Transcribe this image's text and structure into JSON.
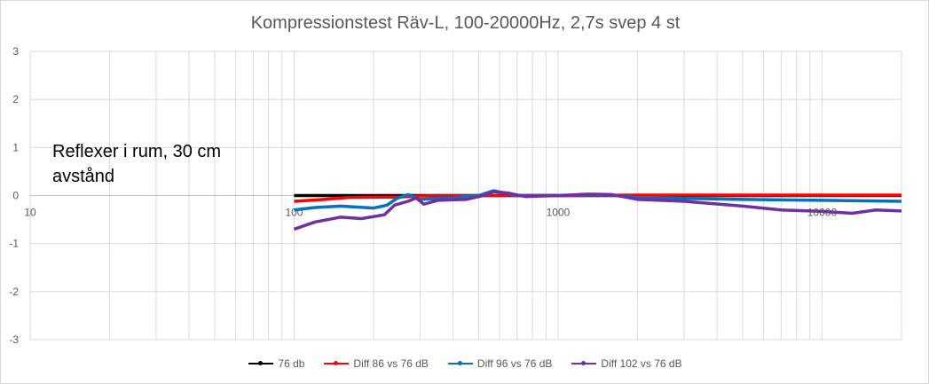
{
  "chart_data": {
    "type": "line",
    "title": "Kompressionstest Räv-L, 100-20000Hz,  2,7s svep 4 st",
    "annotation": [
      "Reflexer i rum, 30 cm",
      "avstånd"
    ],
    "xscale": "log",
    "xlim": [
      10,
      20000
    ],
    "ylim": [
      -3,
      3
    ],
    "xticks": [
      "10",
      "100",
      "1000",
      "10000"
    ],
    "yticks": [
      "3",
      "2",
      "1",
      "0",
      "-1",
      "-2",
      "-3"
    ],
    "grid": true,
    "legend": "bottom",
    "series": [
      {
        "name": "76 db",
        "color": "#000000",
        "points": [
          [
            100,
            0
          ],
          [
            20000,
            0
          ]
        ]
      },
      {
        "name": "Diff 86 vs 76 dB",
        "color": "#ff0000",
        "points": [
          [
            100,
            -0.12
          ],
          [
            130,
            -0.08
          ],
          [
            160,
            -0.04
          ],
          [
            250,
            -0.03
          ],
          [
            300,
            -0.01
          ],
          [
            500,
            0
          ],
          [
            1000,
            0
          ],
          [
            2000,
            0.01
          ],
          [
            20000,
            0.01
          ]
        ]
      },
      {
        "name": "Diff 96 vs 76 dB",
        "color": "#0070c0",
        "points": [
          [
            100,
            -0.3
          ],
          [
            120,
            -0.25
          ],
          [
            150,
            -0.22
          ],
          [
            200,
            -0.26
          ],
          [
            225,
            -0.2
          ],
          [
            245,
            -0.06
          ],
          [
            270,
            0.02
          ],
          [
            300,
            -0.08
          ],
          [
            400,
            -0.05
          ],
          [
            500,
            0
          ],
          [
            570,
            0.1
          ],
          [
            700,
            0
          ],
          [
            1000,
            0
          ],
          [
            1500,
            0.02
          ],
          [
            2000,
            -0.04
          ],
          [
            3000,
            -0.06
          ],
          [
            5000,
            -0.08
          ],
          [
            10000,
            -0.1
          ],
          [
            20000,
            -0.12
          ]
        ]
      },
      {
        "name": "Diff 102 vs 76 dB",
        "color": "#7030a0",
        "points": [
          [
            100,
            -0.7
          ],
          [
            120,
            -0.55
          ],
          [
            150,
            -0.45
          ],
          [
            180,
            -0.48
          ],
          [
            220,
            -0.4
          ],
          [
            240,
            -0.2
          ],
          [
            270,
            -0.12
          ],
          [
            290,
            -0.05
          ],
          [
            310,
            -0.18
          ],
          [
            350,
            -0.1
          ],
          [
            450,
            -0.08
          ],
          [
            520,
            0
          ],
          [
            570,
            0.08
          ],
          [
            650,
            0.05
          ],
          [
            750,
            -0.02
          ],
          [
            1000,
            0
          ],
          [
            1300,
            0.03
          ],
          [
            1600,
            0.02
          ],
          [
            2000,
            -0.08
          ],
          [
            3000,
            -0.12
          ],
          [
            5000,
            -0.22
          ],
          [
            7000,
            -0.3
          ],
          [
            10000,
            -0.33
          ],
          [
            13000,
            -0.37
          ],
          [
            16000,
            -0.3
          ],
          [
            20000,
            -0.32
          ]
        ]
      }
    ]
  }
}
